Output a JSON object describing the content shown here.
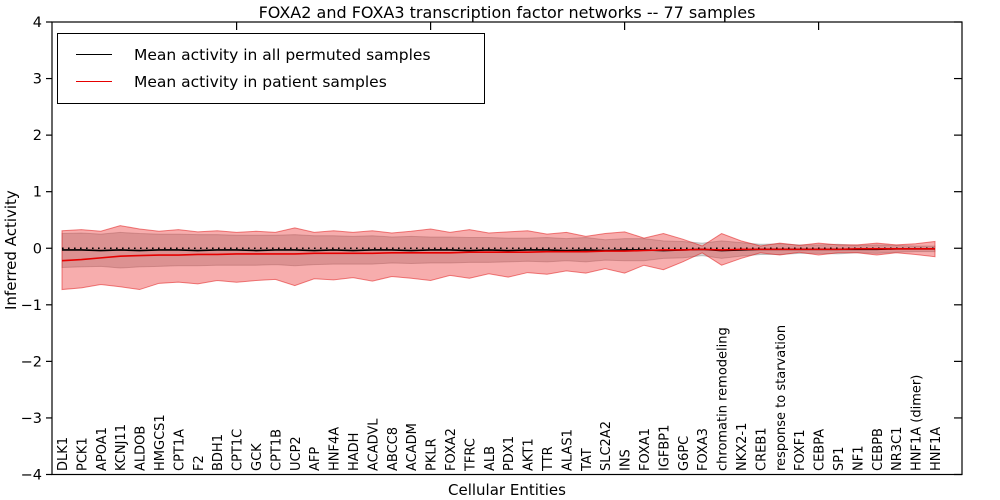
{
  "chart_data": {
    "type": "line",
    "title": "FOXA2 and FOXA3 transcription factor networks -- 77 samples",
    "xlabel": "Cellular Entities",
    "ylabel": "Inferred Activity",
    "ylim": [
      -4,
      4
    ],
    "yticks": [
      -4,
      -3,
      -2,
      -1,
      0,
      1,
      2,
      3,
      4
    ],
    "ytick_labels": [
      "−4",
      "−3",
      "−2",
      "−1",
      "0",
      "1",
      "2",
      "3",
      "4"
    ],
    "top_ticks_at_positions": [
      10,
      20,
      30,
      40
    ],
    "grid": false,
    "legend_position": "upper left",
    "zero_line": {
      "style": "dotted",
      "y": 0,
      "color": "#000000"
    },
    "categories": [
      "DLK1",
      "PCK1",
      "APOA1",
      "KCNJ11",
      "ALDOB",
      "HMGCS1",
      "CPT1A",
      "F2",
      "BDH1",
      "CPT1C",
      "GCK",
      "CPT1B",
      "UCP2",
      "AFP",
      "HNF4A",
      "HADH",
      "ACADVL",
      "ABCC8",
      "ACADM",
      "PKLR",
      "FOXA2",
      "TFRC",
      "ALB",
      "PDX1",
      "AKT1",
      "TTR",
      "ALAS1",
      "TAT",
      "SLC2A2",
      "INS",
      "FOXA1",
      "IGFBP1",
      "G6PC",
      "FOXA3",
      "chromatin remodeling",
      "NKX2-1",
      "CREB1",
      "response to starvation",
      "FOXF1",
      "CEBPA",
      "SP1",
      "NF1",
      "CEBPB",
      "NR3C1",
      "HNF1A (dimer)",
      "HNF1A"
    ],
    "series": [
      {
        "name": "Mean activity in all permuted samples",
        "color": "#000000",
        "band_fill": "rgba(60,60,60,0.22)",
        "band_stroke": "rgba(60,60,60,0.25)",
        "values": [
          -0.03,
          -0.03,
          -0.04,
          -0.03,
          -0.04,
          -0.03,
          -0.03,
          -0.04,
          -0.03,
          -0.03,
          -0.04,
          -0.03,
          -0.03,
          -0.04,
          -0.03,
          -0.04,
          -0.03,
          -0.03,
          -0.04,
          -0.03,
          -0.03,
          -0.04,
          -0.03,
          -0.04,
          -0.03,
          -0.03,
          -0.04,
          -0.03,
          -0.04,
          -0.03,
          -0.03,
          -0.04,
          -0.03,
          -0.02,
          -0.04,
          -0.03,
          -0.02,
          -0.02,
          -0.02,
          -0.02,
          -0.02,
          -0.02,
          -0.02,
          -0.01,
          -0.01,
          -0.01
        ],
        "band_upper": [
          0.26,
          0.27,
          0.25,
          0.28,
          0.26,
          0.25,
          0.25,
          0.24,
          0.24,
          0.23,
          0.23,
          0.23,
          0.24,
          0.22,
          0.22,
          0.21,
          0.22,
          0.2,
          0.21,
          0.2,
          0.2,
          0.19,
          0.19,
          0.18,
          0.18,
          0.19,
          0.17,
          0.19,
          0.15,
          0.17,
          0.17,
          0.13,
          0.12,
          0.09,
          0.13,
          0.1,
          0.07,
          0.08,
          0.06,
          0.06,
          0.07,
          0.05,
          0.06,
          0.05,
          0.04,
          0.04
        ],
        "band_lower": [
          -0.34,
          -0.33,
          -0.32,
          -0.35,
          -0.33,
          -0.32,
          -0.31,
          -0.31,
          -0.3,
          -0.3,
          -0.3,
          -0.29,
          -0.31,
          -0.29,
          -0.28,
          -0.28,
          -0.28,
          -0.26,
          -0.27,
          -0.26,
          -0.26,
          -0.25,
          -0.25,
          -0.24,
          -0.23,
          -0.24,
          -0.22,
          -0.24,
          -0.21,
          -0.22,
          -0.22,
          -0.18,
          -0.17,
          -0.13,
          -0.18,
          -0.14,
          -0.11,
          -0.11,
          -0.09,
          -0.09,
          -0.1,
          -0.08,
          -0.09,
          -0.07,
          -0.06,
          -0.06
        ]
      },
      {
        "name": "Mean activity in patient samples",
        "color": "#e60000",
        "band_fill": "rgba(235,40,40,0.38)",
        "band_stroke": "rgba(225,30,30,0.55)",
        "values": [
          -0.22,
          -0.2,
          -0.17,
          -0.14,
          -0.13,
          -0.12,
          -0.12,
          -0.11,
          -0.11,
          -0.1,
          -0.1,
          -0.1,
          -0.1,
          -0.09,
          -0.09,
          -0.09,
          -0.09,
          -0.08,
          -0.08,
          -0.08,
          -0.08,
          -0.07,
          -0.07,
          -0.07,
          -0.07,
          -0.06,
          -0.06,
          -0.06,
          -0.05,
          -0.05,
          -0.04,
          -0.03,
          -0.03,
          -0.02,
          -0.03,
          -0.02,
          -0.02,
          -0.02,
          -0.02,
          -0.02,
          -0.02,
          -0.01,
          -0.01,
          -0.01,
          -0.01,
          -0.01
        ],
        "band_upper": [
          0.31,
          0.33,
          0.3,
          0.4,
          0.34,
          0.3,
          0.33,
          0.29,
          0.31,
          0.28,
          0.3,
          0.28,
          0.36,
          0.28,
          0.31,
          0.28,
          0.31,
          0.27,
          0.3,
          0.34,
          0.28,
          0.33,
          0.27,
          0.29,
          0.31,
          0.25,
          0.28,
          0.21,
          0.26,
          0.29,
          0.18,
          0.26,
          0.16,
          0.04,
          0.26,
          0.13,
          0.04,
          0.09,
          0.05,
          0.09,
          0.06,
          0.06,
          0.09,
          0.06,
          0.08,
          0.12
        ],
        "band_lower": [
          -0.73,
          -0.7,
          -0.64,
          -0.68,
          -0.73,
          -0.62,
          -0.6,
          -0.63,
          -0.57,
          -0.6,
          -0.57,
          -0.55,
          -0.66,
          -0.54,
          -0.56,
          -0.52,
          -0.58,
          -0.5,
          -0.53,
          -0.57,
          -0.48,
          -0.53,
          -0.45,
          -0.51,
          -0.43,
          -0.46,
          -0.4,
          -0.44,
          -0.36,
          -0.44,
          -0.3,
          -0.38,
          -0.24,
          -0.08,
          -0.3,
          -0.18,
          -0.08,
          -0.12,
          -0.07,
          -0.12,
          -0.08,
          -0.08,
          -0.12,
          -0.08,
          -0.11,
          -0.15
        ]
      }
    ]
  }
}
